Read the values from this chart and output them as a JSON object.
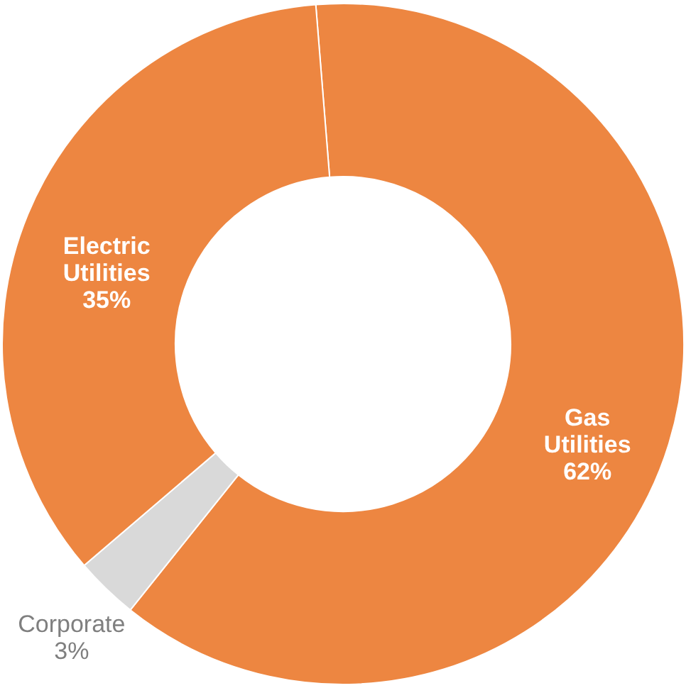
{
  "chart_data": {
    "type": "donut",
    "categories": [
      "Gas Utilities",
      "Corporate",
      "Electric Utilities"
    ],
    "values": [
      62,
      3,
      35
    ],
    "colors": [
      "#ed8641",
      "#d9d9d9",
      "#ed8641"
    ],
    "value_labels": [
      "62%",
      "3%",
      "35%"
    ]
  }
}
